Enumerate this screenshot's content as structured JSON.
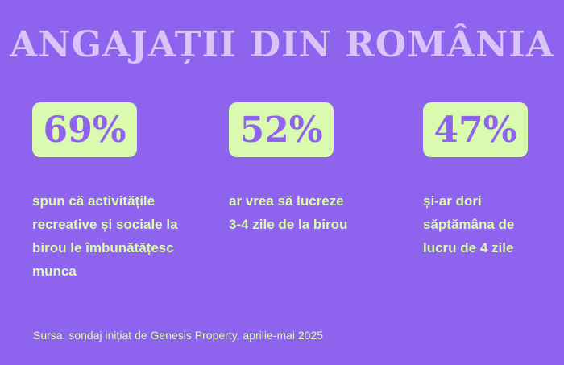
{
  "title": "ANGAJAȚII DIN ROMÂNIA",
  "stats": [
    {
      "value": "69%",
      "description": "spun că activitățile recreative și sociale la birou le îmbunătățesc munca"
    },
    {
      "value": "52%",
      "description": "ar vrea să lucreze 3-4 zile de la birou"
    },
    {
      "value": "47%",
      "description": "și-ar dori săptămâna de lucru de 4 zile"
    }
  ],
  "source": "Sursa: sondaj inițiat de Genesis Property, aprilie-mai 2025",
  "colors": {
    "background": "#8e63ed",
    "title": "#d9c4f7",
    "box": "#dafaaf",
    "text": "#dafaaf"
  }
}
